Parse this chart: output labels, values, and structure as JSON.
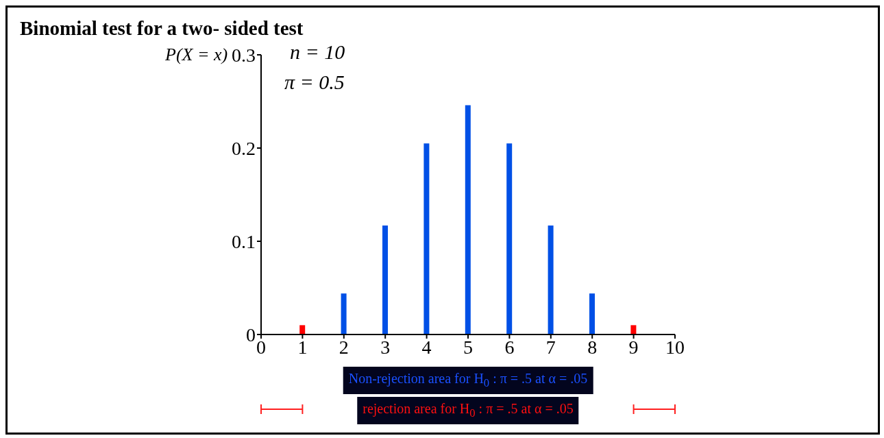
{
  "chart_data": {
    "type": "bar",
    "title": "Binomial test for a two- sided test",
    "ylabel": "P(X = x)",
    "x": [
      1,
      2,
      3,
      4,
      5,
      6,
      7,
      8,
      9
    ],
    "values": [
      0.01,
      0.044,
      0.117,
      0.205,
      0.246,
      0.205,
      0.117,
      0.044,
      0.01
    ],
    "colors": [
      "#ff0000",
      "#0050e6",
      "#0050e6",
      "#0050e6",
      "#0050e6",
      "#0050e6",
      "#0050e6",
      "#0050e6",
      "#ff0000"
    ],
    "xlim": [
      0,
      10
    ],
    "xticks": [
      0,
      1,
      2,
      3,
      4,
      5,
      6,
      7,
      8,
      9,
      10
    ],
    "ylim": [
      0,
      0.3
    ],
    "yticks": [
      0,
      0.1,
      0.2,
      0.3
    ],
    "grid": false,
    "legend": false,
    "annotations": [
      "n = 10",
      "π = 0.5",
      "Non-rejection area for H$_{0}$ : π = .5 at α = .05",
      "rejection area for H$_{0}$ : π = .5 at α = .05"
    ]
  }
}
